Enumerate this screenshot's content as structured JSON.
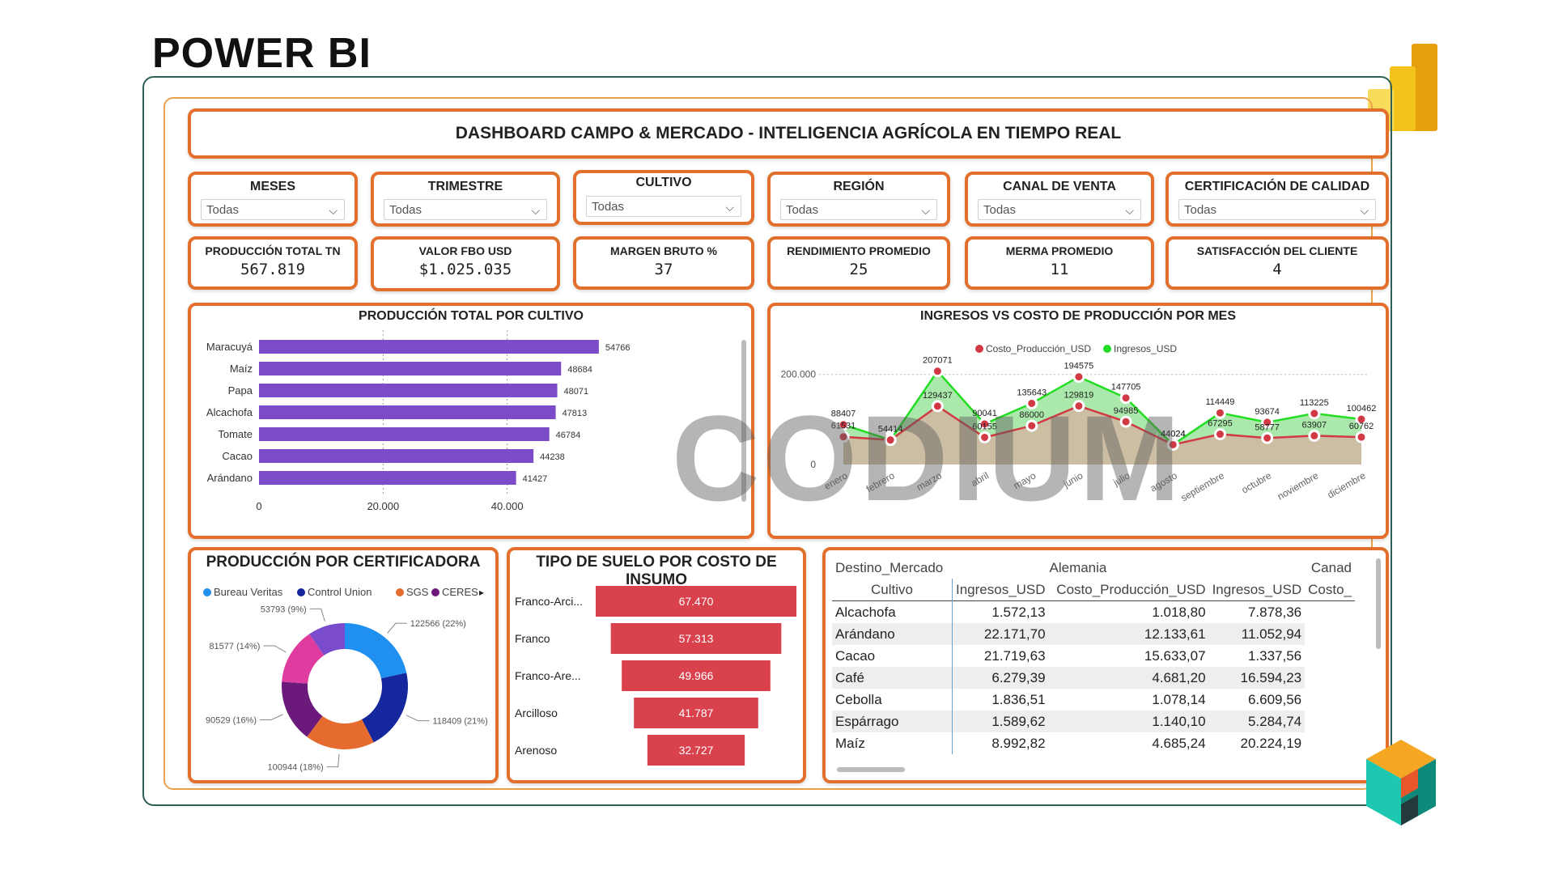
{
  "page_heading": "POWER BI",
  "dashboard_title": "DASHBOARD CAMPO & MERCADO - INTELIGENCIA AGRÍCOLA EN TIEMPO REAL",
  "slicers": [
    {
      "label": "MESES",
      "value": "Todas"
    },
    {
      "label": "TRIMESTRE",
      "value": "Todas"
    },
    {
      "label": "CULTIVO",
      "value": "Todas"
    },
    {
      "label": "REGIÓN",
      "value": "Todas"
    },
    {
      "label": "CANAL DE VENTA",
      "value": "Todas"
    },
    {
      "label": "CERTIFICACIÓN DE CALIDAD",
      "value": "Todas"
    }
  ],
  "kpis": [
    {
      "label": "PRODUCCIÓN TOTAL TN",
      "value": "567.819"
    },
    {
      "label": "VALOR FBO USD",
      "value": "$1.025.035"
    },
    {
      "label": "MARGEN BRUTO %",
      "value": "37"
    },
    {
      "label": "RENDIMIENTO PROMEDIO",
      "value": "25"
    },
    {
      "label": "MERMA PROMEDIO",
      "value": "11"
    },
    {
      "label": "SATISFACCIÓN DEL CLIENTE",
      "value": "4"
    }
  ],
  "watermark": "CODIUM",
  "chart_data": [
    {
      "type": "bar",
      "title": "PRODUCCIÓN TOTAL POR CULTIVO",
      "categories": [
        "Maracuyá",
        "Maíz",
        "Papa",
        "Alcachofa",
        "Tomate",
        "Cacao",
        "Arándano"
      ],
      "values": [
        54766,
        48684,
        48071,
        47813,
        46784,
        44238,
        41427
      ],
      "xlim": [
        0,
        60000
      ],
      "ticks": [
        0,
        20000,
        40000
      ],
      "tick_labels": [
        "0",
        "20.000",
        "40.000"
      ],
      "color": "#7b4bc9"
    },
    {
      "type": "line",
      "title": "INGRESOS VS COSTO DE PRODUCCIÓN POR MES",
      "categories": [
        "enero",
        "febrero",
        "marzo",
        "abril",
        "mayo",
        "junio",
        "julio",
        "agosto",
        "septiembre",
        "octubre",
        "noviembre",
        "diciembre"
      ],
      "series": [
        {
          "name": "Costo_Producción_USD",
          "color": "#d13a45",
          "values": [
            61531,
            54414,
            129437,
            60155,
            86000,
            129819,
            94985,
            44024,
            67295,
            58777,
            63907,
            60762
          ]
        },
        {
          "name": "Ingresos_USD",
          "color": "#22dd22",
          "values": [
            88407,
            54414,
            207071,
            90041,
            135643,
            194575,
            147705,
            44024,
            114449,
            93674,
            113225,
            100462
          ]
        }
      ],
      "y_ticks": [
        "0",
        "200.000"
      ],
      "ylim": [
        0,
        280000
      ]
    },
    {
      "type": "pie",
      "title": "PRODUCCIÓN POR CERTIFICADORA",
      "legend": [
        "Bureau Veritas",
        "Control Union",
        "SGS",
        "CERES"
      ],
      "slices": [
        {
          "label": "122566 (22%)",
          "value": 122566,
          "color": "#1f90f0"
        },
        {
          "label": "118409 (21%)",
          "value": 118409,
          "color": "#15279c"
        },
        {
          "label": "100944 (18%)",
          "value": 100944,
          "color": "#e66b2e"
        },
        {
          "label": "90529 (16%)",
          "value": 90529,
          "color": "#6b1a7c"
        },
        {
          "label": "81577 (14%)",
          "value": 81577,
          "color": "#e03ca0"
        },
        {
          "label": "53793 (9%)",
          "value": 53793,
          "color": "#7a4ccc"
        }
      ]
    },
    {
      "type": "bar",
      "title": "TIPO DE SUELO POR COSTO DE INSUMO",
      "categories": [
        "Franco-Arci...",
        "Franco",
        "Franco-Are...",
        "Arcilloso",
        "Arenoso"
      ],
      "values": [
        67470,
        57313,
        49966,
        41787,
        32727
      ],
      "value_labels": [
        "67.470",
        "57.313",
        "49.966",
        "41.787",
        "32.727"
      ],
      "color": "#d9414d"
    }
  ],
  "matrix": {
    "header_row1": [
      "Destino_Mercado",
      "Alemania",
      "",
      "Canad"
    ],
    "header_row2": [
      "Cultivo",
      "Ingresos_USD",
      "Costo_Producción_USD",
      "Ingresos_USD",
      "Costo_"
    ],
    "rows": [
      [
        "Alcachofa",
        "1.572,13",
        "1.018,80",
        "7.878,36"
      ],
      [
        "Arándano",
        "22.171,70",
        "12.133,61",
        "11.052,94"
      ],
      [
        "Cacao",
        "21.719,63",
        "15.633,07",
        "1.337,56"
      ],
      [
        "Café",
        "6.279,39",
        "4.681,20",
        "16.594,23"
      ],
      [
        "Cebolla",
        "1.836,51",
        "1.078,14",
        "6.609,56"
      ],
      [
        "Espárrago",
        "1.589,62",
        "1.140,10",
        "5.284,74"
      ],
      [
        "Maíz",
        "8.992,82",
        "4.685,24",
        "20.224,19"
      ]
    ]
  }
}
